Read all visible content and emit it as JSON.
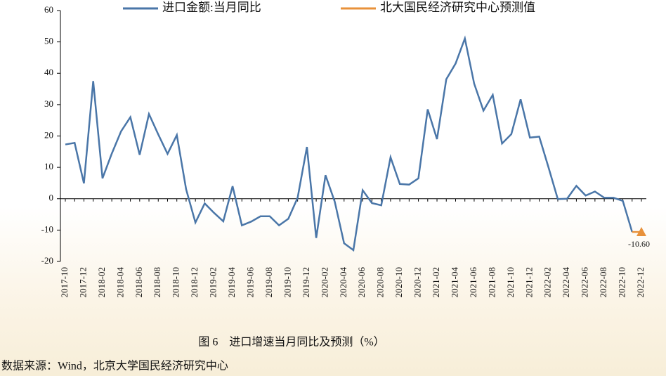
{
  "chart_data": {
    "type": "line",
    "categories": [
      "2017-10",
      null,
      "2017-12",
      null,
      "2018-02",
      null,
      "2018-04",
      null,
      "2018-06",
      null,
      "2018-08",
      null,
      "2018-10",
      null,
      "2018-12",
      null,
      "2019-02",
      null,
      "2019-04",
      null,
      "2019-06",
      null,
      "2019-08",
      null,
      "2019-10",
      null,
      "2019-12",
      null,
      "2020-02",
      null,
      "2020-04",
      null,
      "2020-06",
      null,
      "2020-08",
      null,
      "2020-10",
      null,
      "2020-12",
      null,
      "2021-02",
      null,
      "2021-04",
      null,
      "2021-06",
      null,
      "2021-08",
      null,
      "2021-10",
      null,
      "2021-12",
      null,
      "2022-02",
      null,
      "2022-04",
      null,
      "2022-06",
      null,
      "2022-08",
      null,
      "2022-10",
      null,
      "2022-12"
    ],
    "series": [
      {
        "name": "进口金额:当月同比",
        "color": "#4a76a8",
        "values": [
          17.3,
          17.8,
          4.9,
          37.5,
          6.5,
          14.4,
          21.5,
          26,
          14,
          27,
          20.5,
          14.3,
          20.3,
          3,
          -7.6,
          -1.5,
          -4.5,
          -7.2,
          4,
          -8.5,
          -7.3,
          -5.6,
          -5.6,
          -8.5,
          -6.4,
          0.3,
          16.5,
          -12.5,
          7.5,
          -1,
          -14.2,
          -16.4,
          2.7,
          -1.4,
          -2.1,
          13.2,
          4.7,
          4.5,
          6.5,
          28.5,
          19,
          38.1,
          43.1,
          51.1,
          36.7,
          28.1,
          33.1,
          17.6,
          20.6,
          31.7,
          19.5,
          19.8,
          10,
          -0.1,
          0,
          4.1,
          1,
          2.3,
          0.3,
          0.3,
          -0.7,
          -10.6,
          null
        ]
      },
      {
        "name": "北大国民经济研究中心预测值",
        "color": "#e8913a",
        "values": [
          null,
          null,
          null,
          null,
          null,
          null,
          null,
          null,
          null,
          null,
          null,
          null,
          null,
          null,
          null,
          null,
          null,
          null,
          null,
          null,
          null,
          null,
          null,
          null,
          null,
          null,
          null,
          null,
          null,
          null,
          null,
          null,
          null,
          null,
          null,
          null,
          null,
          null,
          null,
          null,
          null,
          null,
          null,
          null,
          null,
          null,
          null,
          null,
          null,
          null,
          null,
          null,
          null,
          null,
          null,
          null,
          null,
          null,
          null,
          null,
          null,
          -10.6,
          -10.6
        ],
        "value_labels": [
          null,
          null,
          null,
          null,
          null,
          null,
          null,
          null,
          null,
          null,
          null,
          null,
          null,
          null,
          null,
          null,
          null,
          null,
          null,
          null,
          null,
          null,
          null,
          null,
          null,
          null,
          null,
          null,
          null,
          null,
          null,
          null,
          null,
          null,
          null,
          null,
          null,
          null,
          null,
          null,
          null,
          null,
          null,
          null,
          null,
          null,
          null,
          null,
          null,
          null,
          null,
          null,
          null,
          null,
          null,
          null,
          null,
          null,
          null,
          null,
          null,
          null,
          "-10.60"
        ]
      }
    ],
    "ylim": [
      -20,
      60
    ],
    "yticks": [
      -20,
      -10,
      0,
      10,
      20,
      30,
      40,
      50,
      60
    ],
    "caption": "图 6　进口增速当月同比及预测（%）",
    "source": "数据来源：Wind，北京大学国民经济研究中心"
  }
}
